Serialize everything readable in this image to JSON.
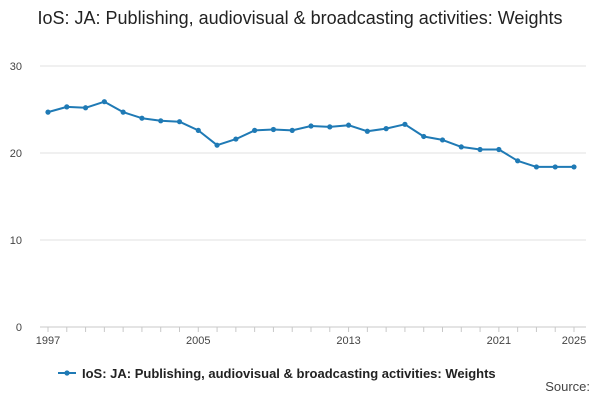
{
  "chart_data": {
    "type": "line",
    "title": "IoS: JA: Publishing, audiovisual & broadcasting activities: Weights",
    "xlabel": "",
    "ylabel": "",
    "x": [
      1997,
      1998,
      1999,
      2000,
      2001,
      2002,
      2003,
      2004,
      2005,
      2006,
      2007,
      2008,
      2009,
      2010,
      2011,
      2012,
      2013,
      2014,
      2015,
      2016,
      2017,
      2018,
      2019,
      2020,
      2021,
      2022,
      2023,
      2024,
      2025
    ],
    "x_ticks": [
      1997,
      2005,
      2013,
      2021,
      2025
    ],
    "y_ticks": [
      0,
      10,
      20,
      30
    ],
    "ylim": [
      0,
      30
    ],
    "xlim": [
      1997,
      2025
    ],
    "series": [
      {
        "name": "IoS: JA: Publishing, audiovisual & broadcasting activities: Weights",
        "color": "#1f7ab5",
        "values": [
          24.7,
          25.3,
          25.2,
          25.9,
          24.7,
          24.0,
          23.7,
          23.6,
          22.6,
          20.9,
          21.6,
          22.6,
          22.7,
          22.6,
          23.1,
          23.0,
          23.2,
          22.5,
          22.8,
          23.3,
          21.9,
          21.5,
          20.7,
          20.4,
          20.4,
          19.1,
          18.4,
          18.4,
          18.4
        ]
      }
    ],
    "legend_position": "bottom",
    "grid": true
  },
  "footer": {
    "source_label": "Source:"
  }
}
